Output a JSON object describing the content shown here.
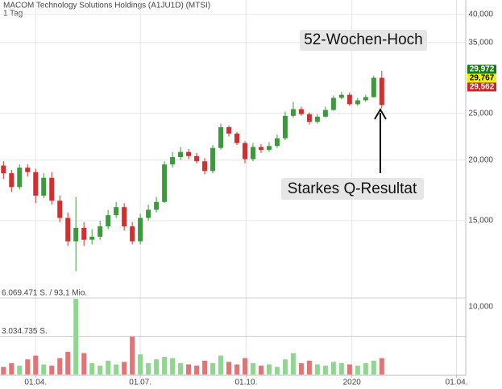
{
  "chart_data": {
    "type": "candlestick",
    "title": "MACOM Technology Solutions Holdings (A1JU1D) (MTSI)",
    "subtitle": "1 Tag",
    "x": [
      "2019-03-04",
      "2019-03-11",
      "2019-03-18",
      "2019-03-25",
      "2019-04-01",
      "2019-04-08",
      "2019-04-15",
      "2019-04-22",
      "2019-04-29",
      "2019-05-06",
      "2019-05-13",
      "2019-05-20",
      "2019-05-27",
      "2019-06-03",
      "2019-06-10",
      "2019-06-17",
      "2019-06-24",
      "2019-07-01",
      "2019-07-08",
      "2019-07-15",
      "2019-07-22",
      "2019-07-29",
      "2019-08-05",
      "2019-08-12",
      "2019-08-19",
      "2019-08-26",
      "2019-09-02",
      "2019-09-09",
      "2019-09-16",
      "2019-09-23",
      "2019-09-30",
      "2019-10-07",
      "2019-10-14",
      "2019-10-21",
      "2019-10-28",
      "2019-11-04",
      "2019-11-11",
      "2019-11-18",
      "2019-11-25",
      "2019-12-02",
      "2019-12-09",
      "2019-12-16",
      "2019-12-23",
      "2019-12-30",
      "2020-01-06",
      "2020-01-13",
      "2020-01-20",
      "2020-01-27"
    ],
    "open": [
      19500,
      18800,
      17600,
      19300,
      18900,
      16900,
      18400,
      16500,
      15200,
      13600,
      14500,
      13700,
      13900,
      14600,
      15400,
      16000,
      14600,
      13600,
      15200,
      15800,
      16400,
      19600,
      20300,
      20800,
      20400,
      19900,
      19000,
      21200,
      23400,
      22700,
      21700,
      20100,
      21300,
      21000,
      21400,
      22200,
      24700,
      25500,
      24900,
      24000,
      24600,
      25400,
      26900,
      27300,
      26100,
      26600,
      27000,
      29600
    ],
    "high": [
      19900,
      19100,
      19600,
      19600,
      19200,
      18800,
      18900,
      16900,
      15600,
      16800,
      14900,
      14400,
      15000,
      15800,
      16400,
      16300,
      14900,
      15500,
      16200,
      16800,
      19900,
      20800,
      21300,
      21100,
      20700,
      20200,
      21500,
      23800,
      23600,
      22900,
      21900,
      21700,
      21600,
      21800,
      22600,
      25200,
      26400,
      25800,
      25100,
      24900,
      25800,
      27200,
      27700,
      27600,
      26900,
      27300,
      29900,
      30600
    ],
    "low": [
      18300,
      17200,
      17400,
      18500,
      16300,
      16700,
      16200,
      14900,
      13300,
      11800,
      13300,
      13400,
      13700,
      14400,
      15200,
      14300,
      13400,
      13400,
      15000,
      15600,
      16300,
      19300,
      20000,
      20100,
      19700,
      18700,
      18800,
      21000,
      22400,
      21500,
      19700,
      19900,
      20700,
      20800,
      21200,
      22000,
      24500,
      24700,
      23700,
      23800,
      24500,
      25300,
      26700,
      25900,
      25900,
      26400,
      26900,
      25600
    ],
    "close": [
      18800,
      17600,
      19300,
      18900,
      16900,
      18400,
      16500,
      15200,
      13600,
      14500,
      13700,
      13900,
      14600,
      15400,
      16000,
      14600,
      13600,
      15200,
      15800,
      16400,
      19600,
      20300,
      20800,
      20400,
      19900,
      19000,
      21200,
      23400,
      22700,
      21700,
      20100,
      21300,
      21000,
      21400,
      22200,
      24700,
      25500,
      24900,
      24000,
      24600,
      25400,
      26900,
      27300,
      26100,
      26600,
      27000,
      29600,
      26000
    ],
    "volume": [
      600000,
      900000,
      700000,
      1200000,
      1500000,
      800000,
      700000,
      1300000,
      1800000,
      6000000,
      1700000,
      900000,
      700000,
      1100000,
      800000,
      1000000,
      3000000,
      1600000,
      900000,
      1200000,
      1400000,
      1300000,
      900000,
      800000,
      700000,
      1100000,
      900000,
      1500000,
      1000000,
      800000,
      1300000,
      900000,
      700000,
      800000,
      600000,
      1200000,
      1700000,
      900000,
      1100000,
      800000,
      700000,
      1000000,
      900000,
      800000,
      700000,
      900000,
      1100000,
      1300000
    ],
    "up_color": "#3c9a3c",
    "down_color": "#d32f2f",
    "volume_up_color": "#8fd68f",
    "volume_down_color": "#e57373",
    "log": true,
    "grid": true,
    "ylim": [
      11000,
      42850
    ],
    "yticks": [
      {
        "value": 15000,
        "label": "15,000"
      },
      {
        "value": 20000,
        "label": "20,000"
      },
      {
        "value": 25000,
        "label": "25,000"
      },
      {
        "value": 35000,
        "label": "35,000"
      },
      {
        "value": 40000,
        "label": "40,000"
      }
    ],
    "xlim": [
      "2019-03-01",
      "2020-04-09"
    ],
    "xticks": [
      {
        "value": "2019-04-01",
        "label": "01.04."
      },
      {
        "value": "2019-07-01",
        "label": "01.07."
      },
      {
        "value": "2019-10-01",
        "label": "01.10."
      },
      {
        "value": "2020-01-01",
        "label": "2020"
      },
      {
        "value": "2020-04-01",
        "label": "01.04."
      }
    ],
    "volume_ylim": [
      0,
      6069471
    ],
    "volume_yticks": [
      {
        "value": 6069471,
        "label": "6.069.471 S. / 93,1 Mio."
      },
      {
        "value": 3034735,
        "label": "3.034.735 S."
      }
    ],
    "volume_right_label": "10,000",
    "price_labels": [
      {
        "value": 29972,
        "label": "29,972",
        "color": "#1a7a1a",
        "text_color": "#ffffff"
      },
      {
        "value": 29767,
        "label": "29,767",
        "color": "#f2f200",
        "text_color": "#000000"
      },
      {
        "value": 29562,
        "label": "29,562",
        "color": "#c62828",
        "text_color": "#ffffff"
      }
    ],
    "annotations": [
      "52-Wochen-Hoch",
      "Starkes Q-Resultat"
    ]
  }
}
